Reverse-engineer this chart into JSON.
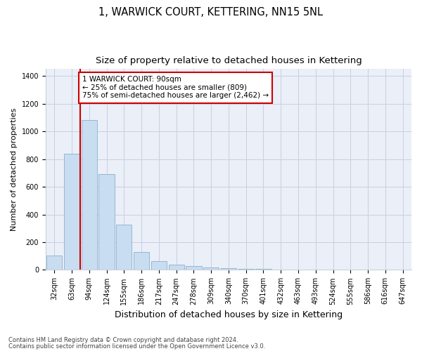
{
  "title": "1, WARWICK COURT, KETTERING, NN15 5NL",
  "subtitle": "Size of property relative to detached houses in Kettering",
  "xlabel": "Distribution of detached houses by size in Kettering",
  "ylabel": "Number of detached properties",
  "categories": [
    "32sqm",
    "63sqm",
    "94sqm",
    "124sqm",
    "155sqm",
    "186sqm",
    "217sqm",
    "247sqm",
    "278sqm",
    "309sqm",
    "340sqm",
    "370sqm",
    "401sqm",
    "432sqm",
    "463sqm",
    "493sqm",
    "524sqm",
    "555sqm",
    "586sqm",
    "616sqm",
    "647sqm"
  ],
  "values": [
    105,
    840,
    1080,
    690,
    325,
    130,
    65,
    40,
    30,
    18,
    10,
    5,
    8,
    0,
    0,
    0,
    0,
    0,
    0,
    0,
    0
  ],
  "bar_color": "#c9ddf0",
  "bar_edgecolor": "#8ab0d0",
  "vline_color": "#cc0000",
  "annotation_text": "1 WARWICK COURT: 90sqm\n← 25% of detached houses are smaller (809)\n75% of semi-detached houses are larger (2,462) →",
  "annotation_box_edgecolor": "#cc0000",
  "annotation_fontsize": 7.5,
  "ylim": [
    0,
    1450
  ],
  "yticks": [
    0,
    200,
    400,
    600,
    800,
    1000,
    1200,
    1400
  ],
  "grid_color": "#c8d0e0",
  "bg_color": "#eaeff8",
  "footnote1": "Contains HM Land Registry data © Crown copyright and database right 2024.",
  "footnote2": "Contains public sector information licensed under the Open Government Licence v3.0.",
  "title_fontsize": 10.5,
  "subtitle_fontsize": 9.5,
  "xlabel_fontsize": 9,
  "ylabel_fontsize": 8,
  "tick_fontsize": 7
}
